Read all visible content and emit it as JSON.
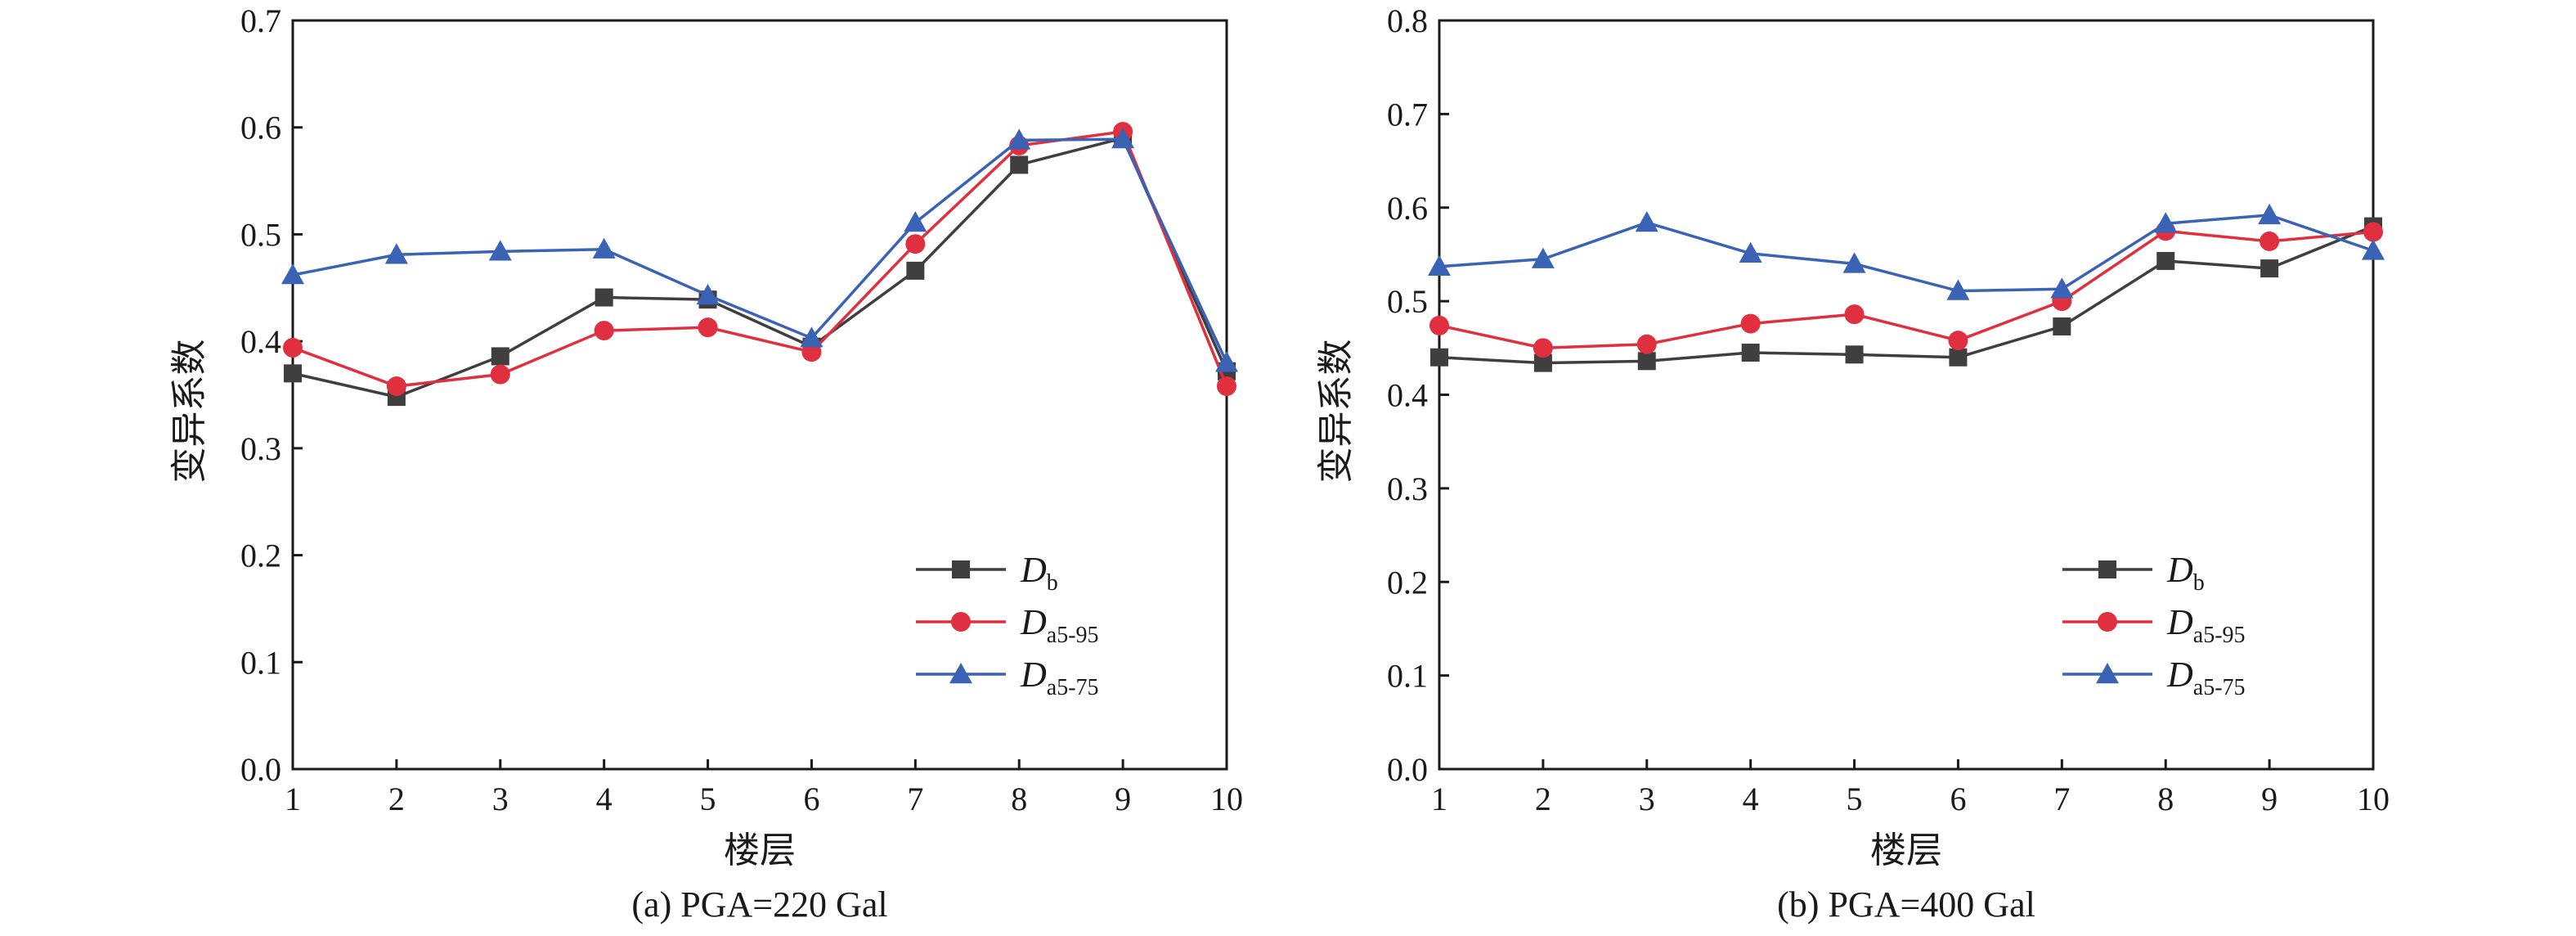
{
  "chart_data": [
    {
      "type": "line",
      "caption": "(a) PGA=220 Gal",
      "xlabel": "楼层",
      "ylabel": "变异系数",
      "x": [
        1,
        2,
        3,
        4,
        5,
        6,
        7,
        8,
        9,
        10
      ],
      "xlim": [
        1,
        10
      ],
      "ylim": [
        0,
        0.7
      ],
      "yticks": [
        "0.0",
        "0.1",
        "0.2",
        "0.3",
        "0.4",
        "0.5",
        "0.6",
        "0.7"
      ],
      "xticks": [
        "1",
        "2",
        "3",
        "4",
        "5",
        "6",
        "7",
        "8",
        "9",
        "10"
      ],
      "grid": false,
      "legend_position": "lower-right",
      "series": [
        {
          "name": "D",
          "sub": "b",
          "marker": "square",
          "color": "#3f3f3f",
          "values": [
            0.37,
            0.348,
            0.386,
            0.441,
            0.439,
            0.395,
            0.466,
            0.565,
            0.59,
            0.372
          ]
        },
        {
          "name": "D",
          "sub": "a5-95",
          "marker": "circle",
          "color": "#e03040",
          "values": [
            0.394,
            0.358,
            0.369,
            0.41,
            0.413,
            0.39,
            0.491,
            0.583,
            0.596,
            0.358
          ]
        },
        {
          "name": "D",
          "sub": "a5-75",
          "marker": "triangle",
          "color": "#3a62b5",
          "values": [
            0.462,
            0.481,
            0.484,
            0.486,
            0.443,
            0.403,
            0.511,
            0.588,
            0.589,
            0.38
          ]
        }
      ]
    },
    {
      "type": "line",
      "caption": "(b) PGA=400 Gal",
      "xlabel": "楼层",
      "ylabel": "变异系数",
      "x": [
        1,
        2,
        3,
        4,
        5,
        6,
        7,
        8,
        9,
        10
      ],
      "xlim": [
        1,
        10
      ],
      "ylim": [
        0,
        0.8
      ],
      "yticks": [
        "0.0",
        "0.1",
        "0.2",
        "0.3",
        "0.4",
        "0.5",
        "0.6",
        "0.7",
        "0.8"
      ],
      "xticks": [
        "1",
        "2",
        "3",
        "4",
        "5",
        "6",
        "7",
        "8",
        "9",
        "10"
      ],
      "grid": false,
      "legend_position": "lower-right",
      "series": [
        {
          "name": "D",
          "sub": "b",
          "marker": "square",
          "color": "#3f3f3f",
          "values": [
            0.44,
            0.434,
            0.436,
            0.445,
            0.443,
            0.44,
            0.473,
            0.543,
            0.535,
            0.58
          ]
        },
        {
          "name": "D",
          "sub": "a5-95",
          "marker": "circle",
          "color": "#e03040",
          "values": [
            0.474,
            0.45,
            0.454,
            0.476,
            0.486,
            0.458,
            0.5,
            0.575,
            0.564,
            0.574
          ]
        },
        {
          "name": "D",
          "sub": "a5-75",
          "marker": "triangle",
          "color": "#3a62b5",
          "values": [
            0.537,
            0.545,
            0.584,
            0.551,
            0.54,
            0.511,
            0.513,
            0.583,
            0.592,
            0.554
          ]
        }
      ]
    }
  ]
}
